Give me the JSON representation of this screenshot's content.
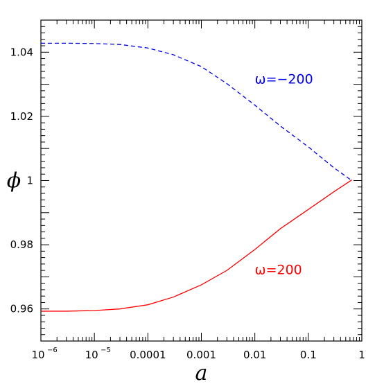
{
  "chart_data": {
    "type": "line",
    "xlabel": "a",
    "ylabel": "ϕ",
    "xscale": "log",
    "xlim": [
      1e-06,
      1
    ],
    "ylim": [
      0.95,
      1.05
    ],
    "grid": false,
    "x_ticks": [
      {
        "value": 1e-06,
        "base": "10",
        "exp": "−6"
      },
      {
        "value": 1e-05,
        "base": "10",
        "exp": "−5"
      },
      {
        "value": 0.0001,
        "text": "0.0001"
      },
      {
        "value": 0.001,
        "text": "0.001"
      },
      {
        "value": 0.01,
        "text": "0.01"
      },
      {
        "value": 0.1,
        "text": "0.1"
      },
      {
        "value": 1,
        "text": "1"
      }
    ],
    "y_ticks": [
      {
        "value": 0.96,
        "text": "0.96"
      },
      {
        "value": 0.98,
        "text": "0.98"
      },
      {
        "value": 1.0,
        "text": "1"
      },
      {
        "value": 1.02,
        "text": "1.02"
      },
      {
        "value": 1.04,
        "text": "1.04"
      }
    ],
    "series": [
      {
        "name": "ω=−200",
        "color": "#0000ee",
        "style": "dashed",
        "x": [
          1e-06,
          3e-06,
          1e-05,
          3e-05,
          0.0001,
          0.0003,
          0.001,
          0.003,
          0.01,
          0.03,
          0.1,
          0.3,
          0.65
        ],
        "y": [
          1.0428,
          1.0428,
          1.0427,
          1.0424,
          1.0413,
          1.0392,
          1.0355,
          1.0302,
          1.0235,
          1.017,
          1.0105,
          1.004,
          1.0
        ]
      },
      {
        "name": "ω=200",
        "color": "#ff0000",
        "style": "solid",
        "x": [
          1e-06,
          3e-06,
          1e-05,
          3e-05,
          0.0001,
          0.0003,
          0.001,
          0.003,
          0.01,
          0.03,
          0.1,
          0.3,
          0.65
        ],
        "y": [
          0.9593,
          0.9593,
          0.9595,
          0.96,
          0.9613,
          0.9637,
          0.9675,
          0.972,
          0.9785,
          0.985,
          0.991,
          0.9965,
          1.0002
        ]
      }
    ],
    "annotations": [
      {
        "text": "ω=−200",
        "color": "#0000ee",
        "x": 0.01,
        "y": 1.0302
      },
      {
        "text": "ω=200",
        "color": "#ff0000",
        "x": 0.01,
        "y": 0.9708
      }
    ]
  }
}
